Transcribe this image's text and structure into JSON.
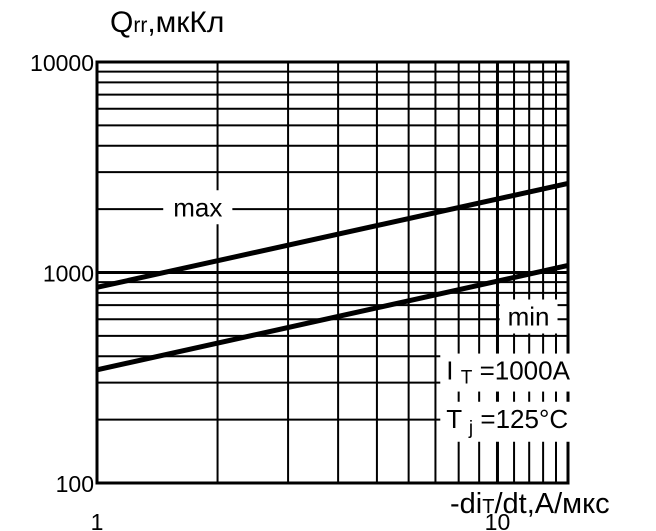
{
  "chart_data": {
    "type": "line",
    "x_scale": "log",
    "y_scale": "log",
    "xlim": [
      1,
      15
    ],
    "ylim": [
      100,
      10000
    ],
    "grid": true,
    "xlabel": {
      "main": "-di",
      "sub": "T",
      "rest": "/dt,A/мкс"
    },
    "ylabel": {
      "main": "Q",
      "sub": "rr",
      "rest": ",мкКл"
    },
    "x_tick_labels": [
      {
        "value": 1,
        "label": "1"
      },
      {
        "value": 10,
        "label": "10"
      }
    ],
    "y_tick_labels": [
      {
        "value": 100,
        "label": "100"
      },
      {
        "value": 1000,
        "label": "1000"
      },
      {
        "value": 10000,
        "label": "10000"
      }
    ],
    "series": [
      {
        "name": "max",
        "x": [
          1,
          15
        ],
        "y": [
          850,
          2650
        ]
      },
      {
        "name": "min",
        "x": [
          1,
          15
        ],
        "y": [
          345,
          1080
        ]
      }
    ],
    "annotations": {
      "current": {
        "main": "I",
        "sub": "T",
        "rest": "=1000A"
      },
      "temperature": {
        "main": "T",
        "sub": "j",
        "rest": "=125°C"
      }
    },
    "colors": {
      "line": "#000000",
      "grid": "#000000",
      "background": "#ffffff"
    }
  }
}
